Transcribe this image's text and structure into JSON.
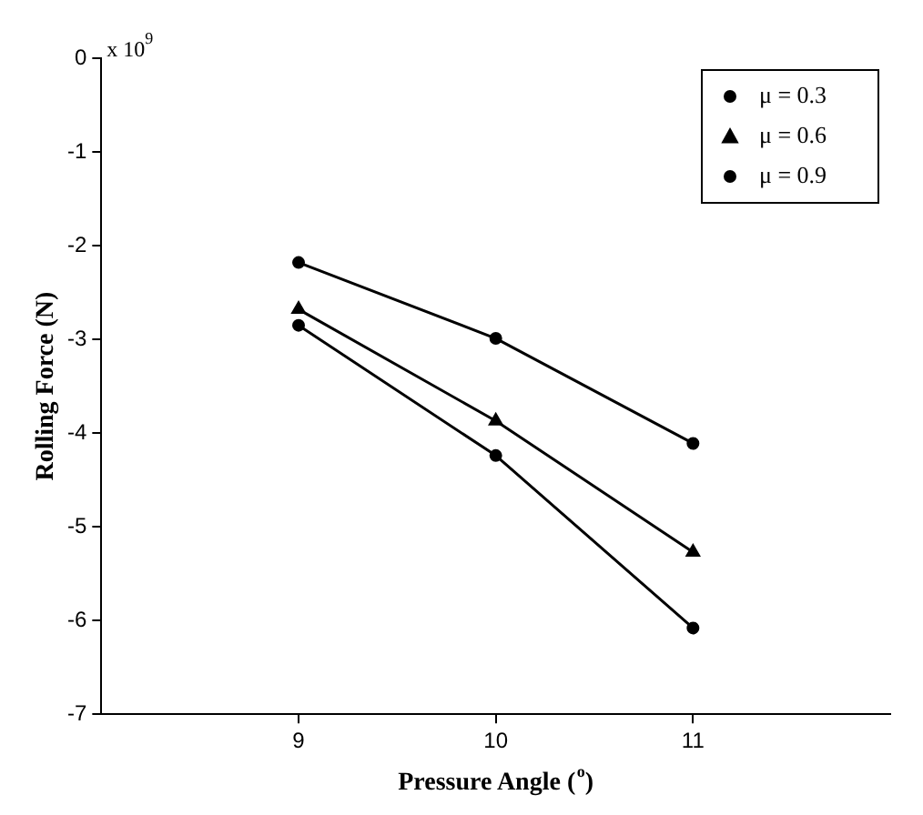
{
  "chart_data": {
    "type": "line",
    "xlabel": "Pressure Angle ($^{o}$)",
    "ylabel": "Rolling Force (N)",
    "annotations": [
      "x 10$^{9}$"
    ],
    "x": [
      9,
      10,
      11
    ],
    "xlim": [
      8,
      12
    ],
    "xticks": [
      9,
      10,
      11
    ],
    "ylim": [
      -7,
      0
    ],
    "yticks": [
      0,
      -1,
      -2,
      -3,
      -4,
      -5,
      -6,
      -7
    ],
    "grid": false,
    "legend": "top right",
    "line_style": "solid",
    "series": [
      {
        "name": "μ = 0.3",
        "color": "#000000",
        "marker": "circle",
        "values": [
          -2.18,
          -2.99,
          -4.11
        ]
      },
      {
        "name": "μ = 0.6",
        "color": "#000000",
        "marker": "triangle",
        "values": [
          -2.68,
          -3.87,
          -5.27
        ]
      },
      {
        "name": "μ = 0.9",
        "color": "#000000",
        "marker": "circle",
        "values": [
          -2.85,
          -4.24,
          -6.08
        ]
      }
    ]
  }
}
